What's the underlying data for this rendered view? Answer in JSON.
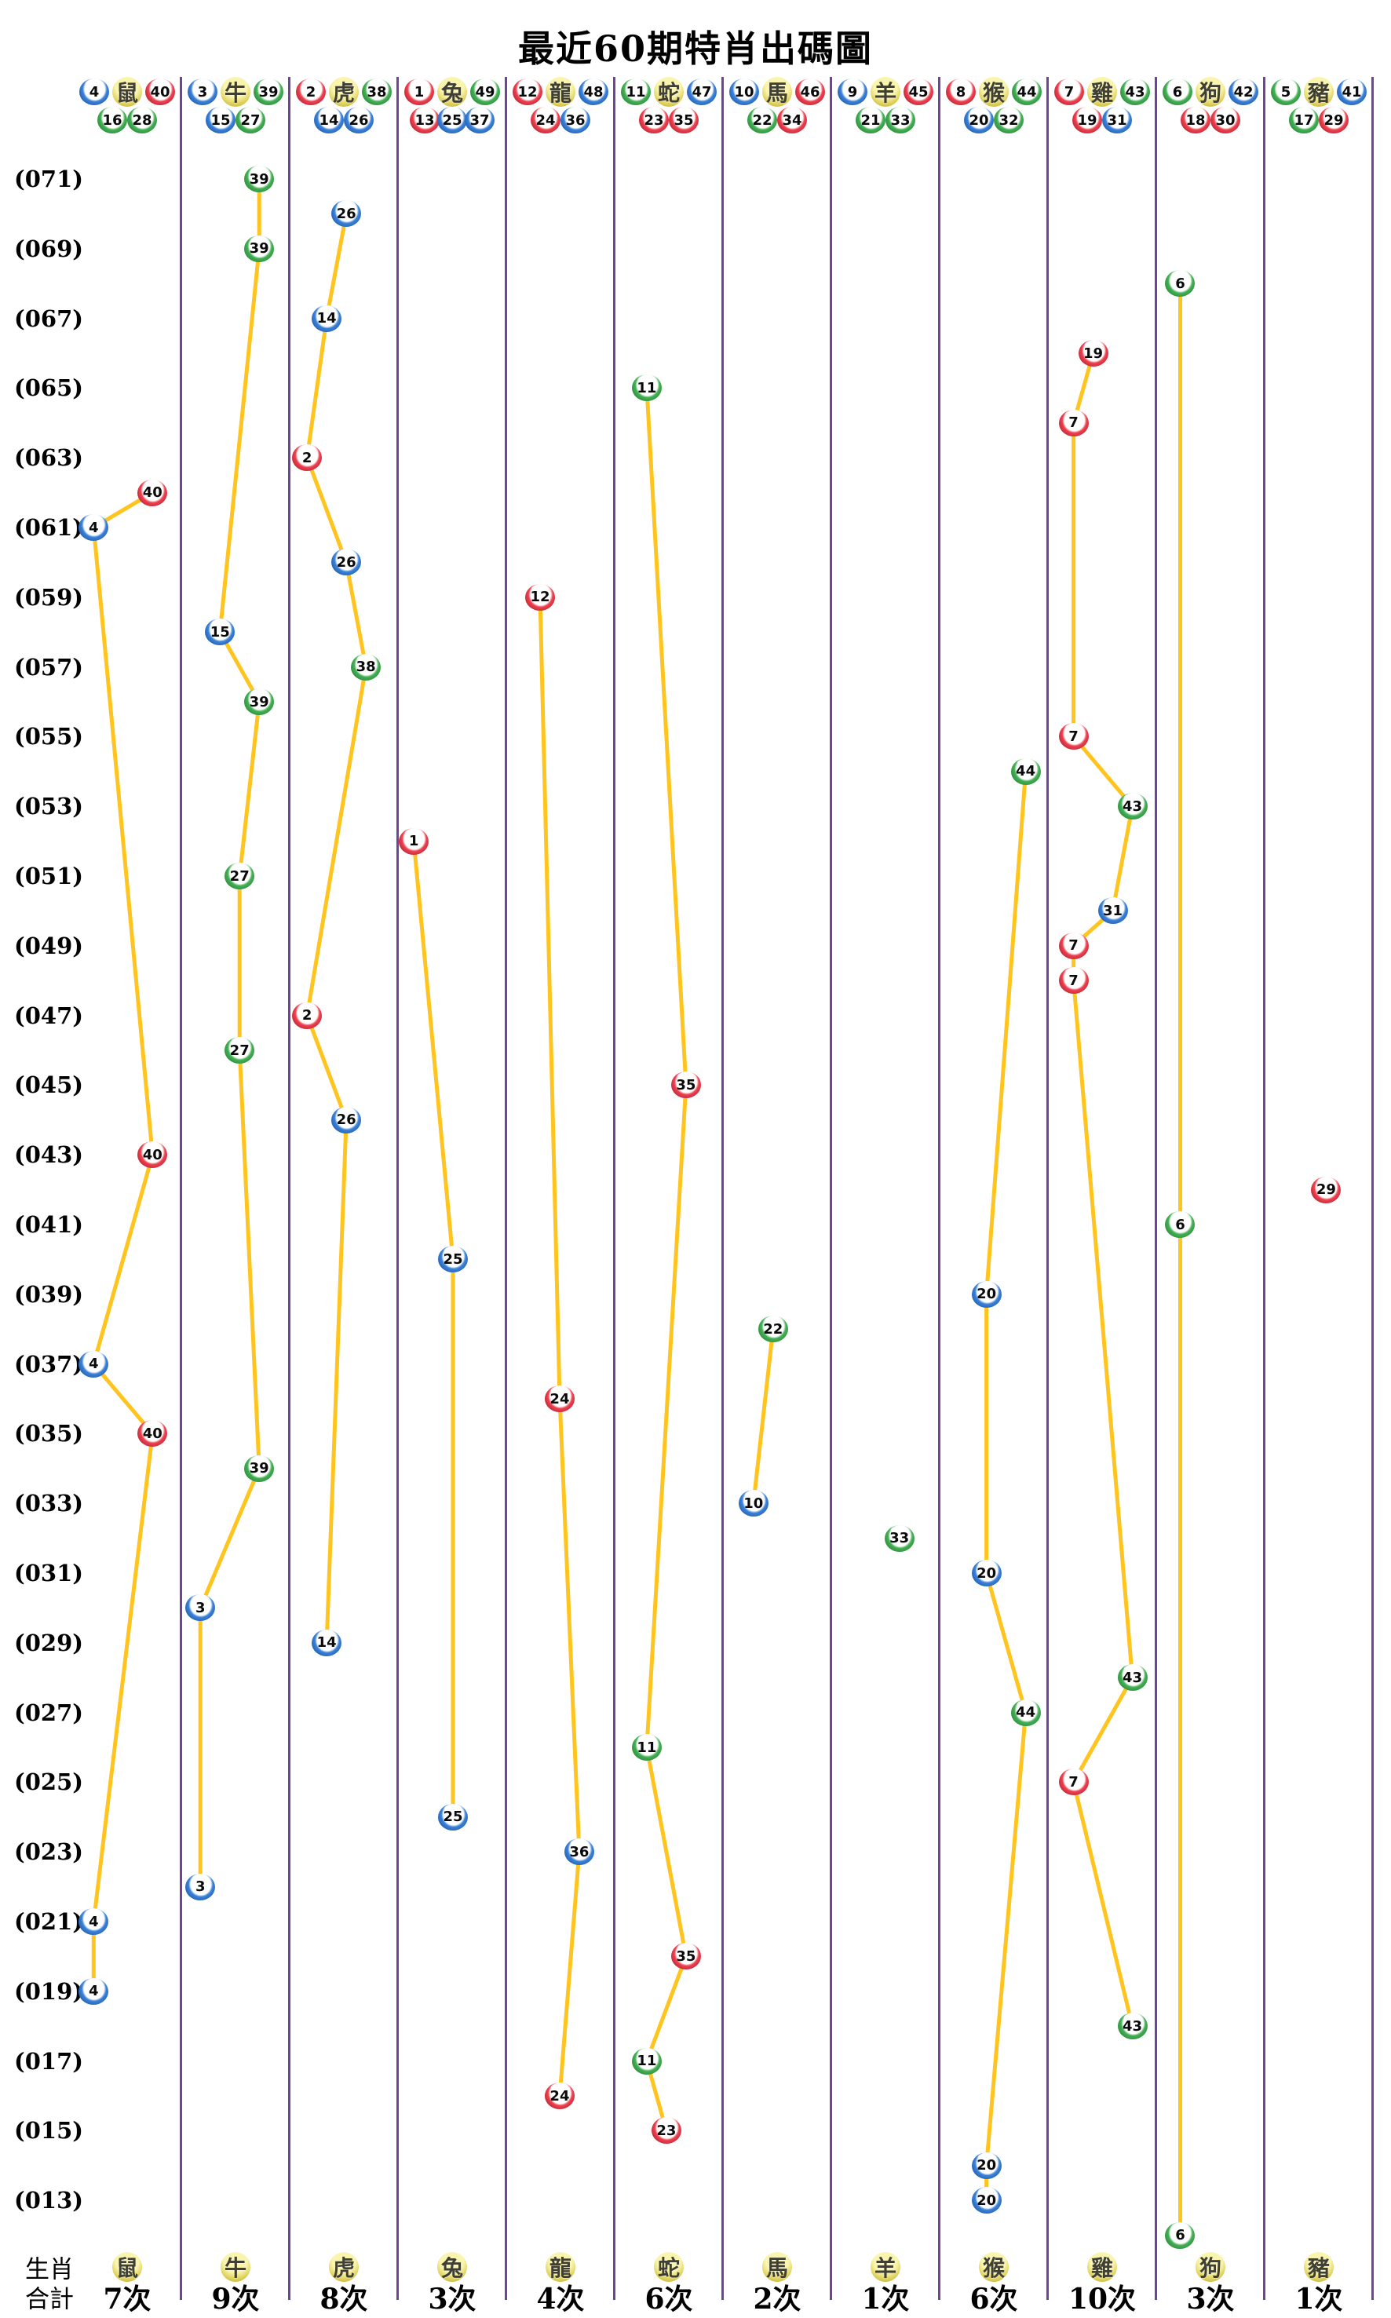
{
  "title": "最近60期特肖出碼圖",
  "y_axis_labels": [
    "(071)",
    "(069)",
    "(067)",
    "(065)",
    "(063)",
    "(061)",
    "(059)",
    "(057)",
    "(055)",
    "(053)",
    "(051)",
    "(049)",
    "(047)",
    "(045)",
    "(043)",
    "(041)",
    "(039)",
    "(037)",
    "(035)",
    "(033)",
    "(031)",
    "(029)",
    "(027)",
    "(025)",
    "(023)",
    "(021)",
    "(019)",
    "(017)",
    "(015)",
    "(013)"
  ],
  "footer": {
    "zodiac_row_label": "生肖",
    "total_row_label": "合計"
  },
  "palette": {
    "line_yellow": "#FFC41E",
    "divider_purple": "#6F4397",
    "ball_red": "#d6293e",
    "ball_blue": "#2a6fc4",
    "ball_green": "#2fa344",
    "badge_yellow": "#d9ca4e",
    "background": "#ffffff",
    "text": "#000000"
  },
  "ball_color_groups": {
    "red": [
      1,
      2,
      7,
      8,
      12,
      13,
      18,
      19,
      23,
      24,
      29,
      30,
      34,
      35,
      40,
      45,
      46
    ],
    "blue": [
      3,
      4,
      9,
      10,
      14,
      15,
      20,
      25,
      26,
      31,
      36,
      37,
      41,
      42,
      47,
      48
    ],
    "green": [
      5,
      6,
      11,
      16,
      17,
      21,
      22,
      27,
      28,
      32,
      33,
      38,
      39,
      43,
      44,
      49
    ]
  },
  "columns": [
    {
      "zodiac": "鼠",
      "header_row1": [
        4,
        40
      ],
      "header_row2": [
        16,
        28
      ],
      "total": "7次"
    },
    {
      "zodiac": "牛",
      "header_row1": [
        3,
        39
      ],
      "header_row2": [
        15,
        27
      ],
      "total": "9次"
    },
    {
      "zodiac": "虎",
      "header_row1": [
        2,
        38
      ],
      "header_row2": [
        14,
        26
      ],
      "total": "8次"
    },
    {
      "zodiac": "兔",
      "header_row1": [
        1,
        49
      ],
      "header_row2": [
        13,
        25,
        37
      ],
      "total": "3次"
    },
    {
      "zodiac": "龍",
      "header_row1": [
        12,
        48
      ],
      "header_row2": [
        24,
        36
      ],
      "total": "4次"
    },
    {
      "zodiac": "蛇",
      "header_row1": [
        11,
        47
      ],
      "header_row2": [
        23,
        35
      ],
      "total": "6次"
    },
    {
      "zodiac": "馬",
      "header_row1": [
        10,
        46
      ],
      "header_row2": [
        22,
        34
      ],
      "total": "2次"
    },
    {
      "zodiac": "羊",
      "header_row1": [
        9,
        45
      ],
      "header_row2": [
        21,
        33
      ],
      "total": "1次"
    },
    {
      "zodiac": "猴",
      "header_row1": [
        8,
        44
      ],
      "header_row2": [
        20,
        32
      ],
      "total": "6次"
    },
    {
      "zodiac": "雞",
      "header_row1": [
        7,
        43
      ],
      "header_row2": [
        19,
        31
      ],
      "total": "10次"
    },
    {
      "zodiac": "狗",
      "header_row1": [
        6,
        42
      ],
      "header_row2": [
        18,
        30
      ],
      "total": "3次"
    },
    {
      "zodiac": "豬",
      "header_row1": [
        5,
        41
      ],
      "header_row2": [
        17,
        29
      ],
      "total": "1次"
    }
  ],
  "chart_data": {
    "type": "line",
    "title": "最近60期特肖出碼圖",
    "period_axis": {
      "labels_shown": "odd periods (071) down to (013)",
      "period_range": [
        12,
        71
      ],
      "direction": "top = most recent"
    },
    "point_format": "[period, ball_number]",
    "series": [
      {
        "name": "鼠",
        "total": "7次",
        "points": [
          [
            62,
            40
          ],
          [
            61,
            4
          ],
          [
            43,
            40
          ],
          [
            37,
            4
          ],
          [
            35,
            40
          ],
          [
            21,
            4
          ],
          [
            19,
            4
          ]
        ]
      },
      {
        "name": "牛",
        "total": "9次",
        "points": [
          [
            71,
            39
          ],
          [
            69,
            39
          ],
          [
            58,
            15
          ],
          [
            56,
            39
          ],
          [
            51,
            27
          ],
          [
            46,
            27
          ],
          [
            34,
            39
          ],
          [
            30,
            3
          ],
          [
            22,
            3
          ]
        ]
      },
      {
        "name": "虎",
        "total": "8次",
        "points": [
          [
            70,
            26
          ],
          [
            67,
            14
          ],
          [
            63,
            2
          ],
          [
            60,
            26
          ],
          [
            57,
            38
          ],
          [
            47,
            2
          ],
          [
            44,
            26
          ],
          [
            29,
            14
          ]
        ]
      },
      {
        "name": "兔",
        "total": "3次",
        "points": [
          [
            52,
            1
          ],
          [
            40,
            25
          ],
          [
            24,
            25
          ]
        ]
      },
      {
        "name": "龍",
        "total": "4次",
        "points": [
          [
            59,
            12
          ],
          [
            36,
            24
          ],
          [
            23,
            36
          ],
          [
            16,
            24
          ]
        ]
      },
      {
        "name": "蛇",
        "total": "6次",
        "points": [
          [
            65,
            11
          ],
          [
            45,
            35
          ],
          [
            26,
            11
          ],
          [
            20,
            35
          ],
          [
            17,
            11
          ],
          [
            15,
            23
          ]
        ]
      },
      {
        "name": "馬",
        "total": "2次",
        "points": [
          [
            38,
            22
          ],
          [
            33,
            10
          ]
        ]
      },
      {
        "name": "羊",
        "total": "1次",
        "points": [
          [
            32,
            33
          ]
        ]
      },
      {
        "name": "猴",
        "total": "6次",
        "points": [
          [
            54,
            44
          ],
          [
            39,
            20
          ],
          [
            31,
            20
          ],
          [
            27,
            44
          ],
          [
            14,
            20
          ],
          [
            13,
            20
          ]
        ]
      },
      {
        "name": "雞",
        "total": "10次",
        "points": [
          [
            66,
            19
          ],
          [
            64,
            7
          ],
          [
            55,
            7
          ],
          [
            53,
            43
          ],
          [
            50,
            31
          ],
          [
            49,
            7
          ],
          [
            48,
            7
          ],
          [
            28,
            43
          ],
          [
            25,
            7
          ],
          [
            18,
            43
          ]
        ]
      },
      {
        "name": "狗",
        "total": "3次",
        "points": [
          [
            68,
            6
          ],
          [
            41,
            6
          ],
          [
            12,
            6
          ]
        ]
      },
      {
        "name": "豬",
        "total": "1次",
        "points": [
          [
            42,
            29
          ]
        ]
      }
    ]
  }
}
